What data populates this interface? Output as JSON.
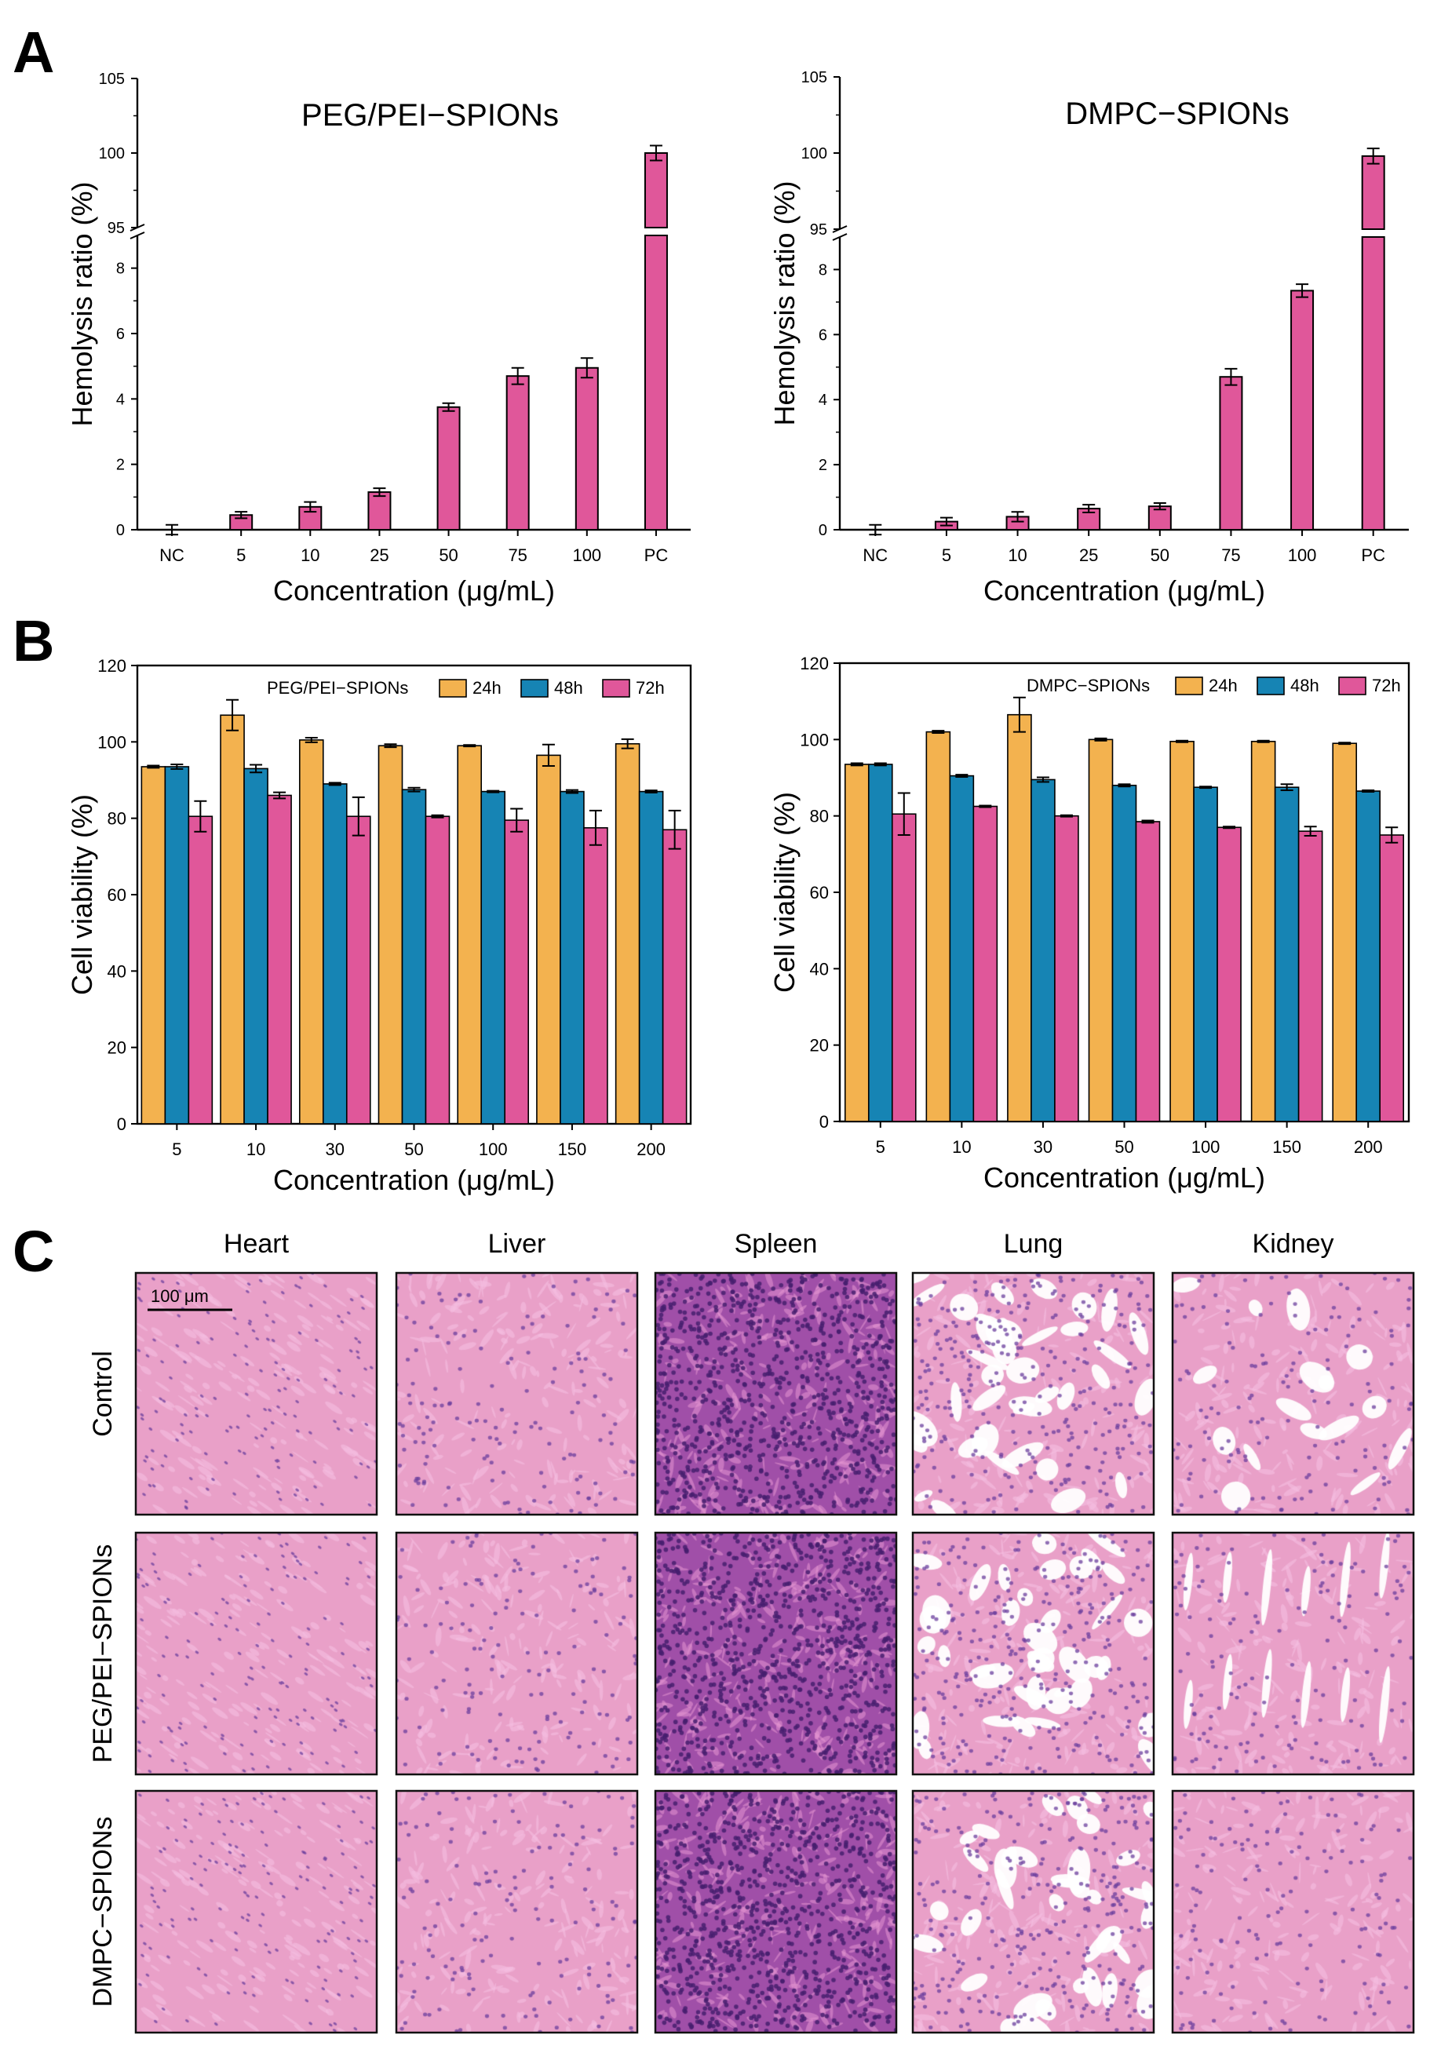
{
  "panels": {
    "a_letter": "A",
    "b_letter": "B",
    "c_letter": "C"
  },
  "colors": {
    "hemolysis_bar": "#e0579a",
    "bar_24h": "#f3b24f",
    "bar_48h": "#1684b4",
    "bar_72h": "#e0579a",
    "tissue_pink": "#e9a0c8",
    "tissue_nuclei": "#6b3f9e"
  },
  "chart_data": [
    {
      "type": "bar",
      "panel": "A",
      "title": "PEG/PEI−SPIONs",
      "xlabel": "Concentration  (μg/mL)",
      "ylabel": "Hemolysis ratio (%)",
      "categories": [
        "NC",
        "5",
        "10",
        "25",
        "50",
        "75",
        "100",
        "PC"
      ],
      "values": [
        0,
        0.45,
        0.7,
        1.15,
        3.75,
        4.7,
        4.95,
        100
      ],
      "errors": [
        0.15,
        0.1,
        0.15,
        0.12,
        0.12,
        0.25,
        0.3,
        0.5
      ],
      "broken_axis": {
        "lower_range": [
          0,
          9
        ],
        "upper_range": [
          95,
          105
        ],
        "lower_ticks": [
          "0",
          "2",
          "4",
          "6",
          "8"
        ],
        "upper_ticks": [
          "95",
          "100",
          "105"
        ]
      }
    },
    {
      "type": "bar",
      "panel": "A",
      "title": "DMPC−SPIONs",
      "xlabel": "Concentration  (μg/mL)",
      "ylabel": "Hemolysis ratio (%)",
      "categories": [
        "NC",
        "5",
        "10",
        "25",
        "50",
        "75",
        "100",
        "PC"
      ],
      "values": [
        0,
        0.25,
        0.4,
        0.65,
        0.72,
        4.7,
        7.35,
        99.8
      ],
      "errors": [
        0.15,
        0.12,
        0.15,
        0.12,
        0.1,
        0.25,
        0.2,
        0.5
      ],
      "broken_axis": {
        "lower_range": [
          0,
          9
        ],
        "upper_range": [
          95,
          105
        ],
        "lower_ticks": [
          "0",
          "2",
          "4",
          "6",
          "8"
        ],
        "upper_ticks": [
          "95",
          "100",
          "105"
        ]
      }
    },
    {
      "type": "bar",
      "panel": "B",
      "legend_title": "PEG/PEI−SPIONs",
      "xlabel": "Concentration (μg/mL)",
      "ylabel": "Cell viability (%)",
      "ylim": [
        0,
        120
      ],
      "yticks": [
        "0",
        "20",
        "40",
        "60",
        "80",
        "100",
        "120"
      ],
      "categories": [
        "5",
        "10",
        "30",
        "50",
        "100",
        "150",
        "200"
      ],
      "series": [
        {
          "name": "24h",
          "values": [
            93.5,
            107,
            100.5,
            99,
            99,
            96.5,
            99.5
          ],
          "errors": [
            0.3,
            4,
            0.6,
            0.4,
            0.2,
            2.8,
            1.2
          ]
        },
        {
          "name": "48h",
          "values": [
            93.5,
            93,
            89,
            87.5,
            87,
            87,
            87
          ],
          "errors": [
            0.6,
            1,
            0.3,
            0.5,
            0.2,
            0.4,
            0.3
          ]
        },
        {
          "name": "72h",
          "values": [
            80.5,
            86,
            80.5,
            80.5,
            79.5,
            77.5,
            77
          ],
          "errors": [
            4,
            0.8,
            5,
            0.3,
            3,
            4.5,
            5
          ]
        }
      ]
    },
    {
      "type": "bar",
      "panel": "B",
      "legend_title": "DMPC−SPIONs",
      "xlabel": "Concentration (μg/mL)",
      "ylabel": "Cell viability (%)",
      "ylim": [
        0,
        120
      ],
      "yticks": [
        "0",
        "20",
        "40",
        "60",
        "80",
        "100",
        "120"
      ],
      "categories": [
        "5",
        "10",
        "30",
        "50",
        "100",
        "150",
        "200"
      ],
      "series": [
        {
          "name": "24h",
          "values": [
            93.5,
            102,
            106.5,
            100,
            99.5,
            99.5,
            99
          ],
          "errors": [
            0.3,
            0.3,
            4.5,
            0.3,
            0.2,
            0.2,
            0.2
          ]
        },
        {
          "name": "48h",
          "values": [
            93.5,
            90.5,
            89.5,
            88,
            87.5,
            87.5,
            86.5
          ],
          "errors": [
            0.3,
            0.3,
            0.6,
            0.3,
            0.2,
            0.8,
            0.2
          ]
        },
        {
          "name": "72h",
          "values": [
            80.5,
            82.5,
            80,
            78.5,
            77,
            76,
            75
          ],
          "errors": [
            5.5,
            0.2,
            0.2,
            0.3,
            0.2,
            1.2,
            2
          ]
        }
      ]
    }
  ],
  "histology": {
    "columns": [
      "Heart",
      "Liver",
      "Spleen",
      "Lung",
      "Kidney"
    ],
    "rows": [
      "Control",
      "PEG/PEI−SPIONs",
      "DMPC−SPIONs"
    ],
    "scale_bar": "100 μm"
  }
}
